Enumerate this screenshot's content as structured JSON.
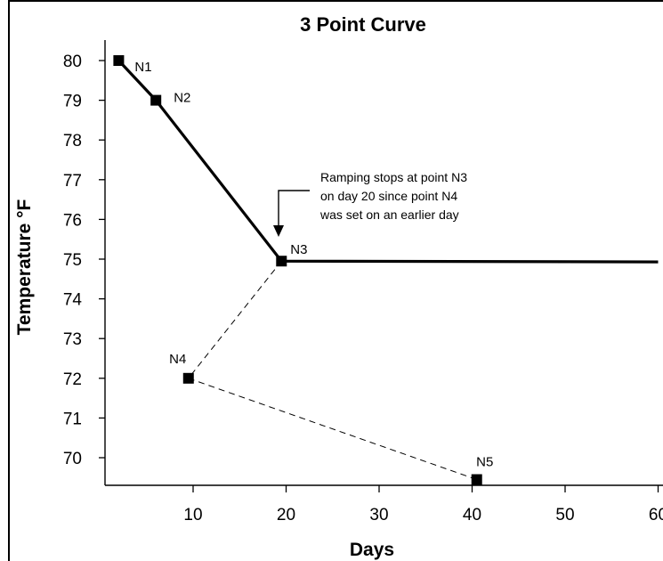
{
  "chart_data": {
    "type": "line",
    "title": "3 Point Curve",
    "xlabel": "Days",
    "ylabel": "Temperature °F",
    "xlim": [
      0,
      60
    ],
    "ylim": [
      69.4,
      81
    ],
    "x_ticks": [
      10,
      20,
      30,
      40,
      50,
      60
    ],
    "x_tick_labels": [
      "10",
      "20",
      "30",
      "40",
      "50",
      "60"
    ],
    "y_ticks": [
      70,
      71,
      72,
      73,
      74,
      75,
      76,
      77,
      78,
      79,
      80
    ],
    "y_tick_labels": [
      "70",
      "71",
      "72",
      "73",
      "74",
      "75",
      "76",
      "77",
      "78",
      "79",
      "80"
    ],
    "grid": false,
    "points": [
      {
        "label": "N1",
        "x": 2,
        "y": 80
      },
      {
        "label": "N2",
        "x": 6,
        "y": 79
      },
      {
        "label": "N3",
        "x": 19.5,
        "y": 74.95
      },
      {
        "label": "N4",
        "x": 9.5,
        "y": 72
      },
      {
        "label": "N5",
        "x": 40.5,
        "y": 69.45
      }
    ],
    "series": [
      {
        "style": "solid",
        "x": [
          2,
          6,
          19.5,
          60
        ],
        "y": [
          80,
          79,
          74.95,
          74.93
        ]
      },
      {
        "style": "dashed",
        "x": [
          19.5,
          9.5,
          40.5
        ],
        "y": [
          74.95,
          72,
          69.45
        ]
      }
    ],
    "annotation": {
      "lines": [
        "Ramping stops at point N3",
        "on day 20 since point N4",
        "was set on an earlier day"
      ],
      "arrow_target": "N3"
    }
  }
}
